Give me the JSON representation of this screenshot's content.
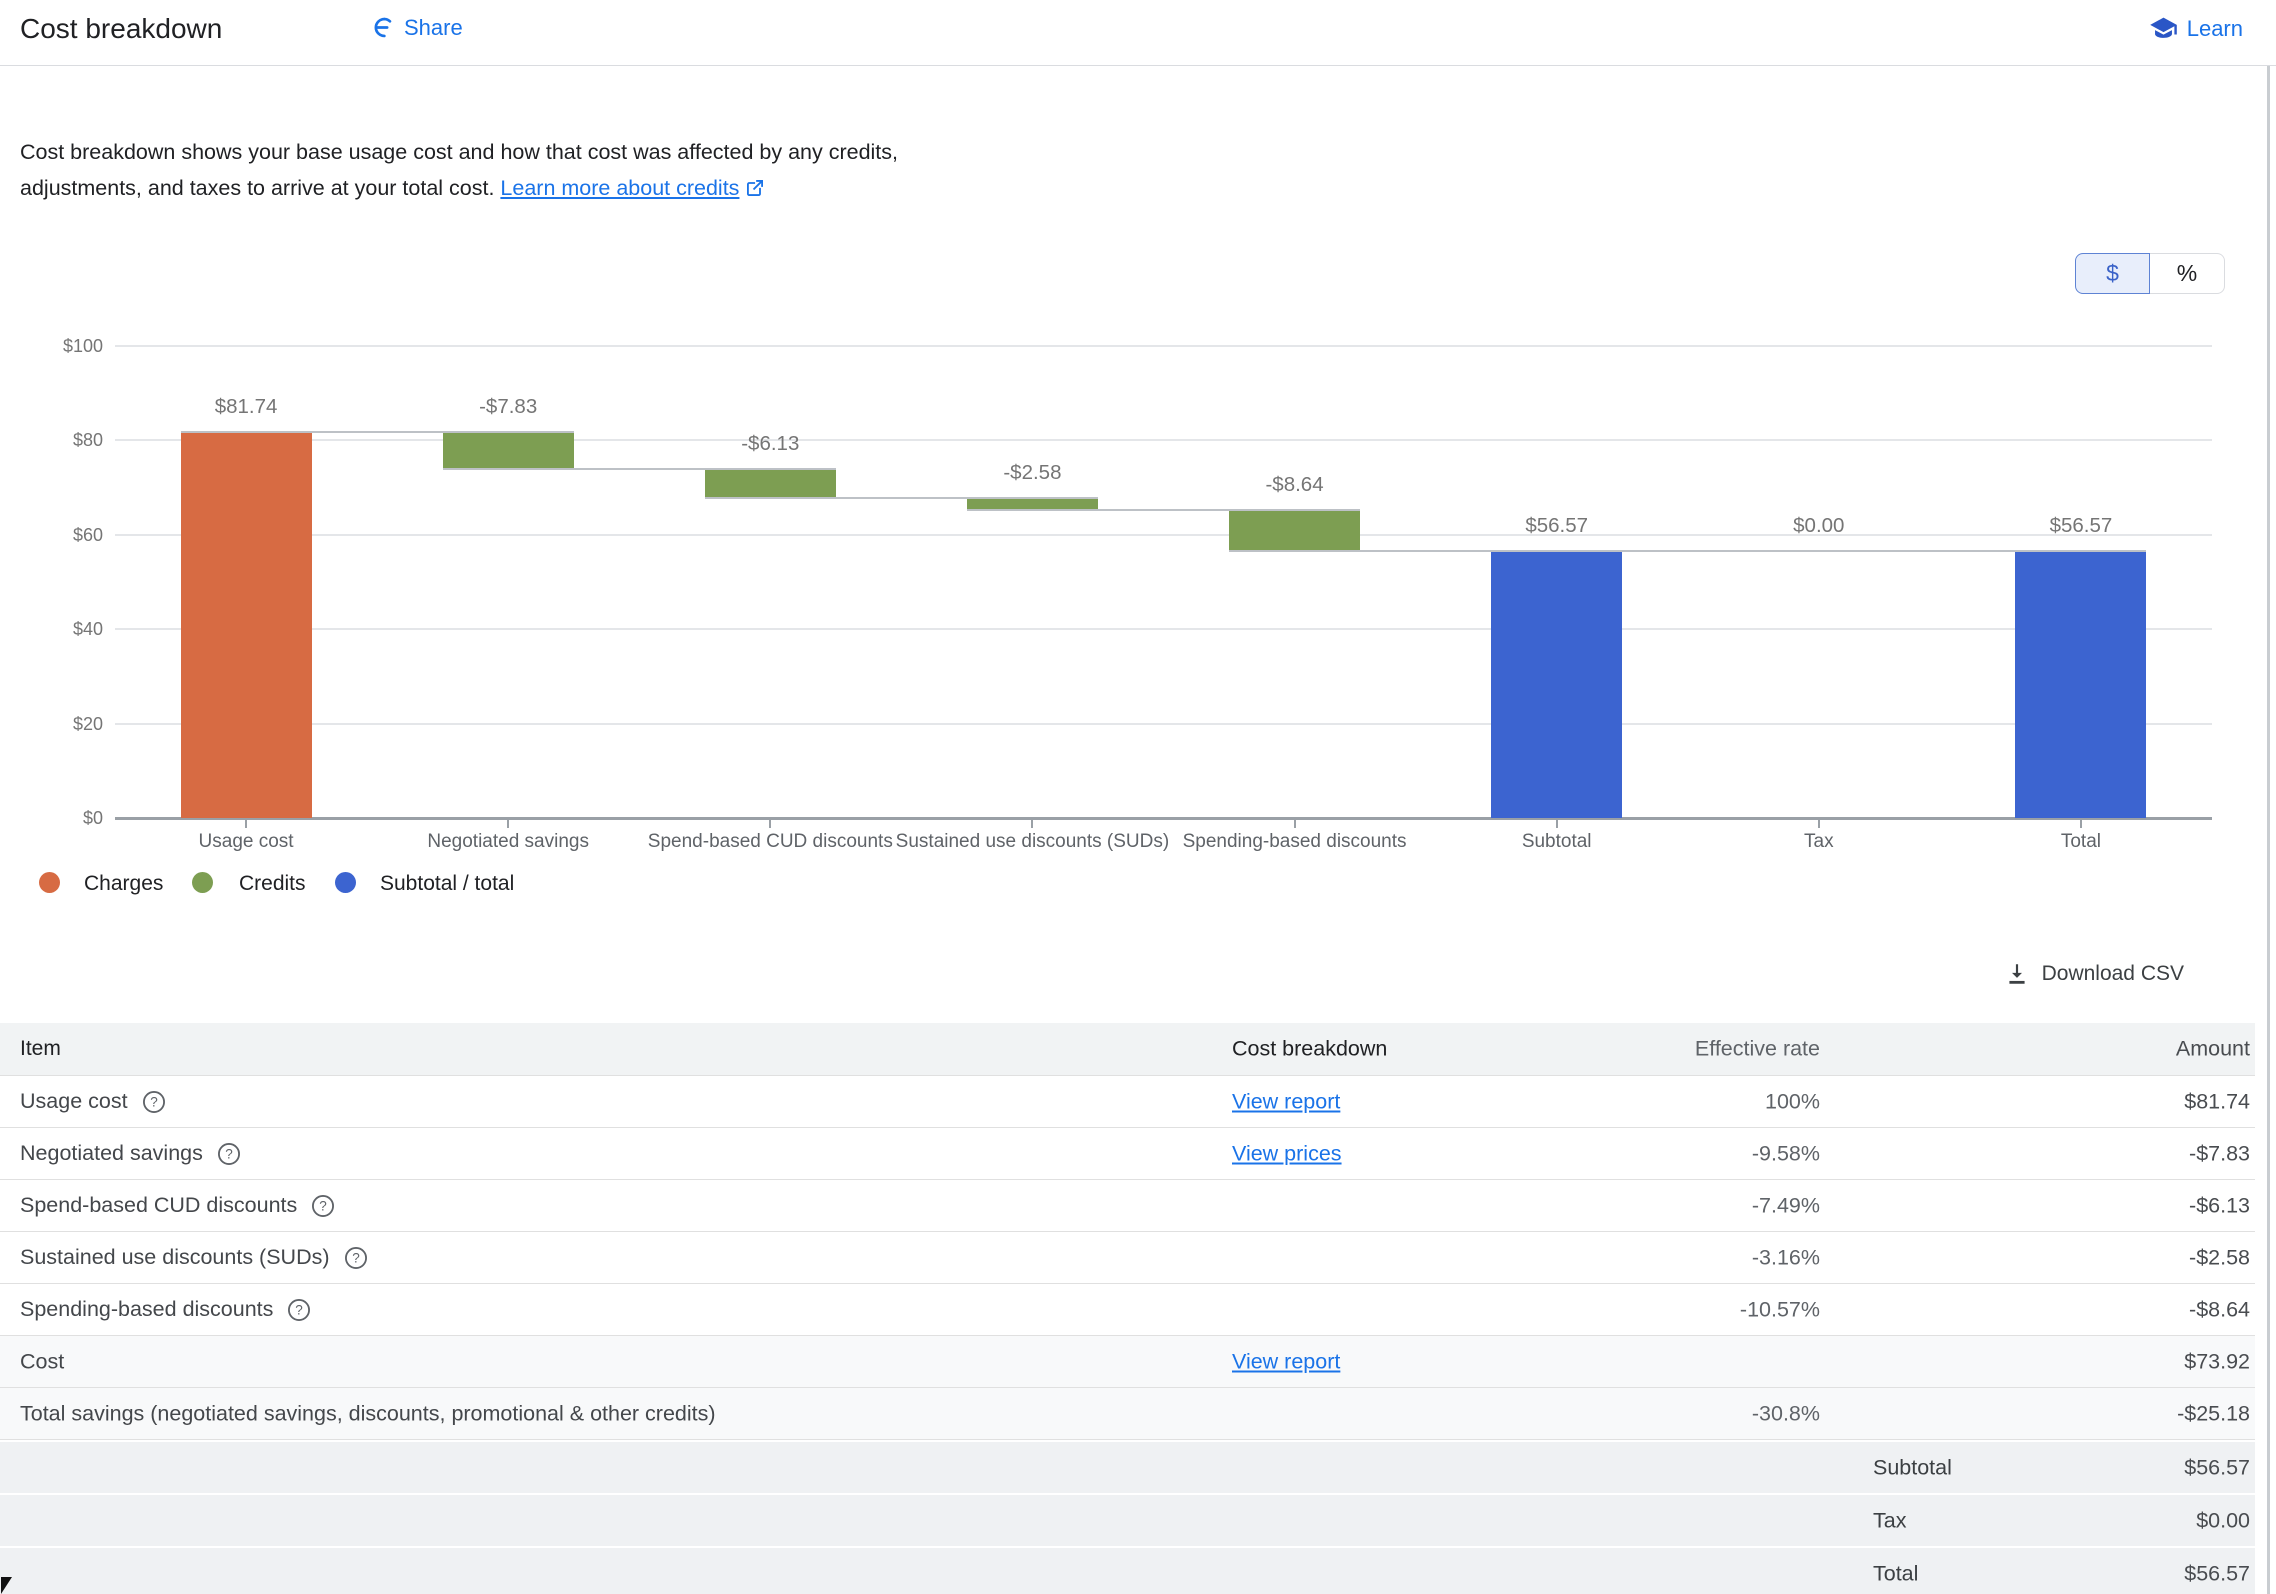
{
  "header": {
    "title": "Cost breakdown",
    "share_label": "Share",
    "learn_label": "Learn"
  },
  "description": {
    "text": "Cost breakdown shows your base usage cost and how that cost was affected by any credits, adjustments, and taxes to arrive at your total cost. ",
    "link_text": "Learn more about credits"
  },
  "toggle": {
    "dollar": "$",
    "percent": "%",
    "selected": "$"
  },
  "chart_data": {
    "type": "bar",
    "subtype": "waterfall",
    "title": "",
    "xlabel": "",
    "ylabel": "",
    "ylim": [
      0,
      100
    ],
    "grid": true,
    "legend_position": "bottom-left",
    "yticks": [
      {
        "value": 0,
        "label": "$0"
      },
      {
        "value": 20,
        "label": "$20"
      },
      {
        "value": 40,
        "label": "$40"
      },
      {
        "value": 60,
        "label": "$60"
      },
      {
        "value": 80,
        "label": "$80"
      },
      {
        "value": 100,
        "label": "$100"
      }
    ],
    "categories": [
      "Usage cost",
      "Negotiated savings",
      "Spend-based CUD discounts",
      "Sustained use discounts (SUDs)",
      "Spending-based discounts",
      "Subtotal",
      "Tax",
      "Total"
    ],
    "bars": [
      {
        "label": "Usage cost",
        "value": 81.74,
        "value_label": "$81.74",
        "start": 0,
        "end": 81.74,
        "color_key": "charge"
      },
      {
        "label": "Negotiated savings",
        "value": -7.83,
        "value_label": "-$7.83",
        "start": 81.74,
        "end": 73.91,
        "color_key": "credit"
      },
      {
        "label": "Spend-based CUD discounts",
        "value": -6.13,
        "value_label": "-$6.13",
        "start": 73.91,
        "end": 67.78,
        "color_key": "credit"
      },
      {
        "label": "Sustained use discounts (SUDs)",
        "value": -2.58,
        "value_label": "-$2.58",
        "start": 67.78,
        "end": 65.2,
        "color_key": "credit"
      },
      {
        "label": "Spending-based discounts",
        "value": -8.64,
        "value_label": "-$8.64",
        "start": 65.2,
        "end": 56.57,
        "color_key": "credit"
      },
      {
        "label": "Subtotal",
        "value": 56.57,
        "value_label": "$56.57",
        "start": 0,
        "end": 56.57,
        "color_key": "total"
      },
      {
        "label": "Tax",
        "value": 0,
        "value_label": "$0.00",
        "start": 56.57,
        "end": 56.57,
        "color_key": "total"
      },
      {
        "label": "Total",
        "value": 56.57,
        "value_label": "$56.57",
        "start": 0,
        "end": 56.57,
        "color_key": "total"
      }
    ],
    "colors": {
      "charge": "#d76b43",
      "credit": "#7d9e52",
      "total": "#3c64d0"
    },
    "legend": [
      {
        "label": "Charges",
        "color_key": "charge"
      },
      {
        "label": "Credits",
        "color_key": "credit"
      },
      {
        "label": "Subtotal / total",
        "color_key": "total"
      }
    ]
  },
  "download": {
    "label": "Download CSV"
  },
  "table": {
    "columns": [
      "Item",
      "Cost breakdown",
      "Effective rate",
      "Amount"
    ],
    "rows": [
      {
        "item": "Usage cost",
        "help": true,
        "link": "View report",
        "rate": "100%",
        "amount": "$81.74",
        "bg": "white"
      },
      {
        "item": "Negotiated savings",
        "help": true,
        "link": "View prices",
        "rate": "-9.58%",
        "amount": "-$7.83",
        "bg": "white"
      },
      {
        "item": "Spend-based CUD discounts",
        "help": true,
        "link": "",
        "rate": "-7.49%",
        "amount": "-$6.13",
        "bg": "white"
      },
      {
        "item": "Sustained use discounts (SUDs)",
        "help": true,
        "link": "",
        "rate": "-3.16%",
        "amount": "-$2.58",
        "bg": "white"
      },
      {
        "item": "Spending-based discounts",
        "help": true,
        "link": "",
        "rate": "-10.57%",
        "amount": "-$8.64",
        "bg": "white"
      },
      {
        "item": "Cost",
        "help": false,
        "link": "View report",
        "rate": "",
        "amount": "$73.92",
        "bg": "light"
      },
      {
        "item": "Total savings (negotiated savings, discounts, promotional & other credits)",
        "help": false,
        "link": "",
        "rate": "-30.8%",
        "amount": "-$25.18",
        "bg": "light"
      }
    ],
    "summary_rows": [
      {
        "label": "Subtotal",
        "amount": "$56.57"
      },
      {
        "label": "Tax",
        "amount": "$0.00"
      },
      {
        "label": "Total",
        "amount": "$56.57"
      }
    ]
  }
}
